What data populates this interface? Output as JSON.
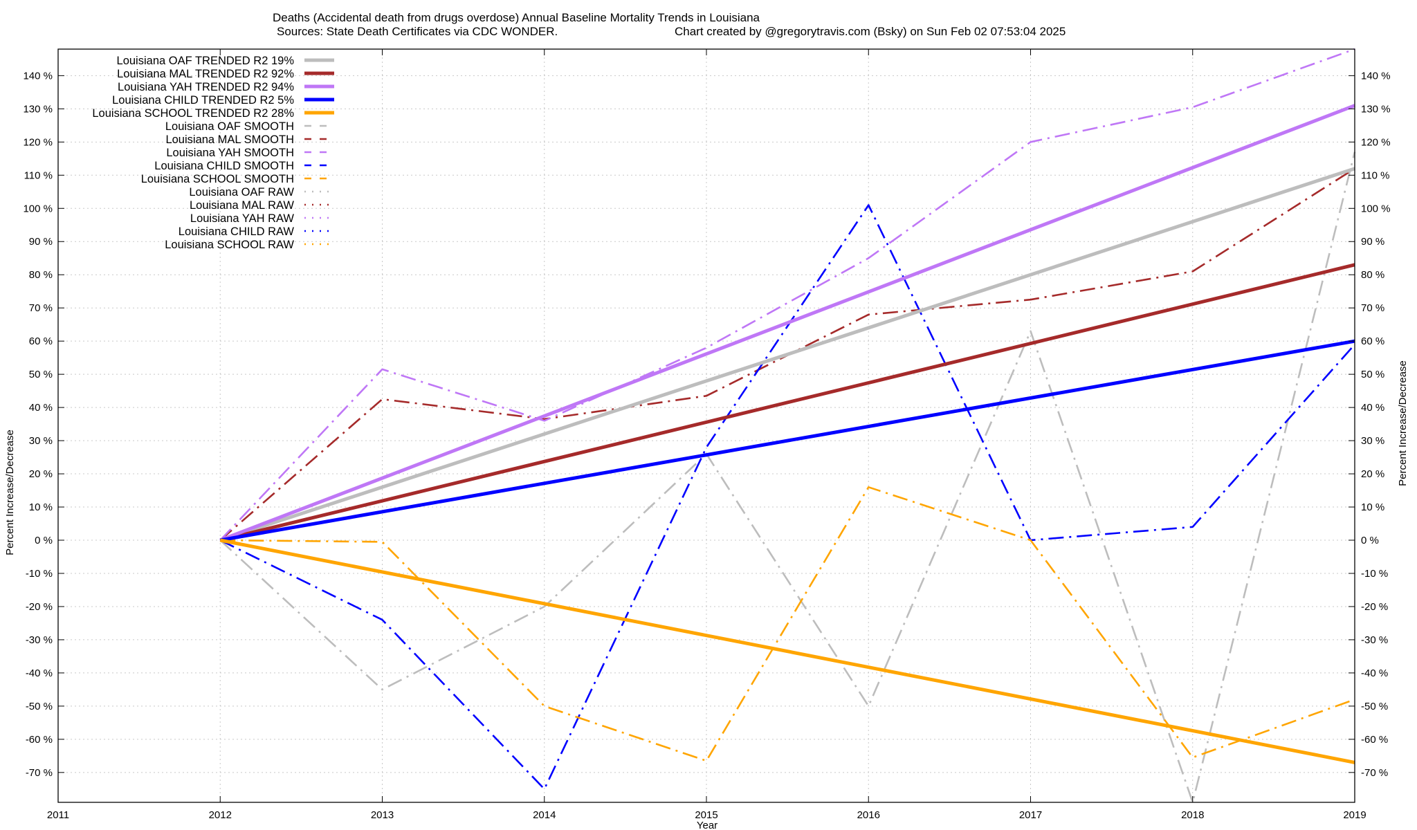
{
  "chart_data": {
    "type": "line",
    "title": "Deaths (Accidental death from drugs overdose)  Annual Baseline Mortality Trends in Louisiana",
    "subtitle_left": "Sources: State Death Certificates via CDC WONDER.",
    "subtitle_right": "Chart created by @gregorytravis.com (Bsky) on Sun Feb 02 07:53:04 2025",
    "xlabel": "Year",
    "ylabel": "Percent Increase/Decrease",
    "y2label": "Percent Increase/Decrease",
    "xlim": [
      2011,
      2019
    ],
    "ylim": [
      -79,
      148
    ],
    "x_ticks": [
      "2011",
      "2012",
      "2013",
      "2014",
      "2015",
      "2016",
      "2017",
      "2018",
      "2019"
    ],
    "y_ticks": [
      "140 %",
      "130 %",
      "120 %",
      "110 %",
      "100 %",
      "90 %",
      "80 %",
      "70 %",
      "60 %",
      "50 %",
      "40 %",
      "30 %",
      "20 %",
      "10 %",
      "0 %",
      "-10 %",
      "-20 %",
      "-30 %",
      "-40 %",
      "-50 %",
      "-60 %",
      "-70 %"
    ],
    "grid": true,
    "legend_position": "top-left",
    "colors": {
      "oaf": "#bdbdbd",
      "mal": "#a52a2a",
      "yah": "#bf77f6",
      "child": "#0000ff",
      "school": "#ffa500"
    },
    "series": [
      {
        "name": "Louisiana OAF TRENDED R2  19%",
        "group": "oaf",
        "style": "trend",
        "x": [
          2012,
          2019
        ],
        "y": [
          0,
          112
        ]
      },
      {
        "name": "Louisiana MAL TRENDED R2  92%",
        "group": "mal",
        "style": "trend",
        "x": [
          2012,
          2019
        ],
        "y": [
          0,
          83
        ]
      },
      {
        "name": "Louisiana YAH TRENDED R2  94%",
        "group": "yah",
        "style": "trend",
        "x": [
          2012,
          2019
        ],
        "y": [
          0,
          131
        ]
      },
      {
        "name": "Louisiana CHILD TRENDED R2   5%",
        "group": "child",
        "style": "trend",
        "x": [
          2012,
          2019
        ],
        "y": [
          0,
          60
        ]
      },
      {
        "name": "Louisiana SCHOOL TRENDED R2  28%",
        "group": "school",
        "style": "trend",
        "x": [
          2012,
          2019
        ],
        "y": [
          0,
          -67
        ]
      },
      {
        "name": "Louisiana OAF SMOOTH",
        "group": "oaf",
        "style": "smooth",
        "x": [
          2012,
          2013,
          2014,
          2015,
          2016,
          2017,
          2018,
          2019
        ],
        "y": [
          0,
          -45,
          -20,
          26,
          -50,
          63,
          -79,
          117
        ]
      },
      {
        "name": "Louisiana MAL SMOOTH",
        "group": "mal",
        "style": "smooth",
        "x": [
          2012,
          2013,
          2014,
          2015,
          2016,
          2017,
          2018,
          2019
        ],
        "y": [
          0,
          42.5,
          36.5,
          43.5,
          68,
          72.5,
          81,
          112
        ]
      },
      {
        "name": "Louisiana YAH SMOOTH",
        "group": "yah",
        "style": "smooth",
        "x": [
          2012,
          2013,
          2014,
          2015,
          2016,
          2017,
          2018,
          2019
        ],
        "y": [
          0,
          51.5,
          36,
          58,
          85,
          120,
          130.5,
          148
        ]
      },
      {
        "name": "Louisiana CHILD SMOOTH",
        "group": "child",
        "style": "smooth",
        "x": [
          2012,
          2013,
          2014,
          2015,
          2016,
          2017,
          2018,
          2019
        ],
        "y": [
          0,
          -24,
          -75,
          28,
          101,
          0,
          4,
          59
        ]
      },
      {
        "name": "Louisiana SCHOOL SMOOTH",
        "group": "school",
        "style": "smooth",
        "x": [
          2012,
          2013,
          2014,
          2015,
          2016,
          2017,
          2018,
          2019
        ],
        "y": [
          0,
          -0.5,
          -50,
          -66.5,
          16,
          0,
          -65.5,
          -48
        ]
      },
      {
        "name": "Louisiana OAF RAW",
        "group": "oaf",
        "style": "raw",
        "x": [],
        "y": []
      },
      {
        "name": "Louisiana MAL RAW",
        "group": "mal",
        "style": "raw",
        "x": [],
        "y": []
      },
      {
        "name": "Louisiana YAH RAW",
        "group": "yah",
        "style": "raw",
        "x": [],
        "y": []
      },
      {
        "name": "Louisiana CHILD RAW",
        "group": "child",
        "style": "raw",
        "x": [],
        "y": []
      },
      {
        "name": "Louisiana SCHOOL RAW",
        "group": "school",
        "style": "raw",
        "x": [],
        "y": []
      }
    ]
  }
}
